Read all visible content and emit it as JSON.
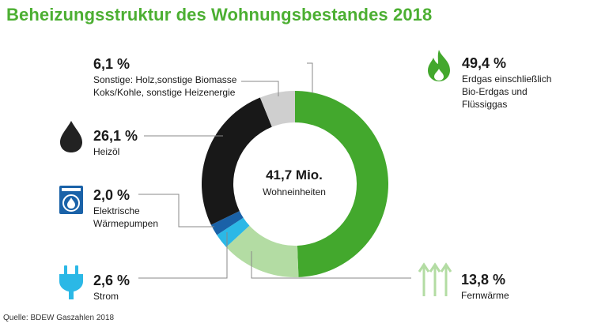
{
  "title": "Beheizungsstruktur des Wohnungsbestandes 2018",
  "source": "Quelle: BDEW Gaszahlen 2018",
  "chart_data": {
    "type": "pie",
    "variant": "donut",
    "title": "Beheizungsstruktur des Wohnungsbestandes 2018",
    "center": {
      "value": "41,7 Mio.",
      "label": "Wohneinheiten"
    },
    "slices": [
      {
        "label_lines": [
          "Erdgas einschließlich",
          "Bio-Erdgas und",
          "Flüssiggas"
        ],
        "value": 49.4,
        "value_text": "49,4 %",
        "color": "#43a82d",
        "icon": "flame-icon"
      },
      {
        "label_lines": [
          "Fernwärme"
        ],
        "value": 13.8,
        "value_text": "13,8 %",
        "color": "#b3dca3",
        "icon": "heat-arrows-icon"
      },
      {
        "label_lines": [
          "Strom"
        ],
        "value": 2.6,
        "value_text": "2,6 %",
        "color": "#2bb8e6",
        "icon": "plug-icon"
      },
      {
        "label_lines": [
          "Elektrische",
          "Wärmepumpen"
        ],
        "value": 2.0,
        "value_text": "2,0 %",
        "color": "#1a62a8",
        "icon": "heat-pump-icon"
      },
      {
        "label_lines": [
          "Heizöl"
        ],
        "value": 26.1,
        "value_text": "26,1 %",
        "color": "#181818",
        "icon": "oil-drop-icon"
      },
      {
        "label_lines": [
          "Sonstige: Holz,sonstige Biomasse",
          "Koks/Kohle, sonstige Heizenergie"
        ],
        "value": 6.1,
        "value_text": "6,1 %",
        "color": "#cfcfcf",
        "icon": ""
      }
    ]
  }
}
